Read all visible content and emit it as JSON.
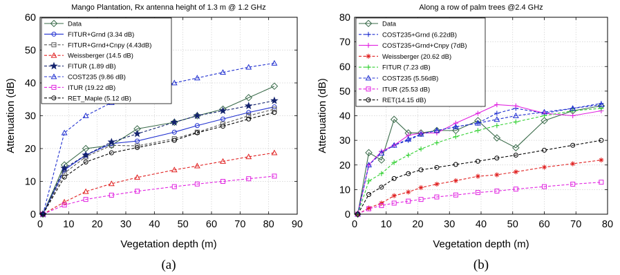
{
  "chart_data": [
    {
      "type": "line",
      "title": "Mango Plantation, Rx antenna height of 1.3 m @ 1.2 GHz",
      "xlabel": "Vegetation depth (m)",
      "ylabel": "Attenuation (dB)",
      "caption": "(a)",
      "xlim": [
        0,
        90
      ],
      "ylim": [
        0,
        60
      ],
      "xticks": [
        0,
        10,
        20,
        30,
        40,
        50,
        60,
        70,
        80,
        90
      ],
      "yticks": [
        0,
        10,
        20,
        30,
        40,
        50,
        60
      ],
      "grid": true,
      "legend_position": "top-left",
      "series": [
        {
          "name": "Data",
          "color": "#3a6b4a",
          "dash": "solid",
          "marker": "diamond",
          "x": [
            1,
            8.5,
            16,
            25,
            34,
            47,
            55,
            64,
            73,
            82
          ],
          "y": [
            0,
            15,
            20,
            21,
            26,
            28,
            30,
            32,
            35.5,
            39
          ]
        },
        {
          "name": "FITUR+Grnd (3.34 dB)",
          "color": "#1f2fd0",
          "dash": "solid",
          "marker": "circle",
          "x": [
            1,
            8.5,
            16,
            25,
            34,
            47,
            55,
            64,
            73,
            82
          ],
          "y": [
            0,
            13.5,
            18,
            21.5,
            22.3,
            25,
            27,
            29,
            31,
            32.7
          ]
        },
        {
          "name": "FITUR+Grnd+Cnpy (4.43dB)",
          "color": "#555555",
          "dash": "dashed",
          "marker": "square",
          "x": [
            1,
            8.5,
            16,
            25,
            34,
            47,
            55,
            64,
            73,
            82
          ],
          "y": [
            0,
            12.5,
            17.5,
            21,
            20.8,
            23,
            25,
            27.5,
            30,
            32
          ]
        },
        {
          "name": "Weissberger (14.5 dB)",
          "color": "#e02020",
          "dash": "dashed",
          "marker": "triangle",
          "x": [
            1,
            8.5,
            16,
            25,
            34,
            47,
            55,
            64,
            73,
            82
          ],
          "y": [
            0,
            3.7,
            6.9,
            9.3,
            11.2,
            13.5,
            14.7,
            16.1,
            17.5,
            18.7
          ]
        },
        {
          "name": "FITUR (1.89 dB)",
          "color": "#14236e",
          "dash": "dashed",
          "marker": "star",
          "x": [
            1,
            8.5,
            16,
            25,
            34,
            47,
            55,
            64,
            73,
            82
          ],
          "y": [
            0,
            14,
            18,
            22,
            24.5,
            28,
            30,
            31.5,
            33,
            34.6
          ]
        },
        {
          "name": "COST235 (9.86 dB)",
          "color": "#1f2fd0",
          "dash": "dashed",
          "marker": "triangle",
          "x": [
            1,
            8.5,
            16,
            25,
            34,
            47,
            55,
            64,
            73,
            82
          ],
          "y": [
            0,
            24.8,
            30,
            34,
            37,
            40,
            41.5,
            43.2,
            44.8,
            46
          ]
        },
        {
          "name": "ITUR (19.22 dB)",
          "color": "#e020e0",
          "dash": "dashed",
          "marker": "square",
          "x": [
            1,
            8.5,
            16,
            25,
            34,
            47,
            55,
            64,
            73,
            82
          ],
          "y": [
            0,
            2.8,
            4.5,
            5.8,
            7,
            8.4,
            9.2,
            10,
            10.8,
            11.6
          ]
        },
        {
          "name": "RET_Maple (5.12 dB)",
          "color": "#000000",
          "dash": "dashed",
          "marker": "circle",
          "x": [
            1,
            8.5,
            16,
            25,
            34,
            47,
            55,
            64,
            73,
            82
          ],
          "y": [
            0,
            11.3,
            15.9,
            18.7,
            20.3,
            22.5,
            24.8,
            26.8,
            29,
            31
          ]
        }
      ]
    },
    {
      "type": "line",
      "title": "Along a row of palm trees @2.4 GHz",
      "xlabel": "Vegetation depth (m)",
      "ylabel": "Attenuation (dB)",
      "caption": "(b)",
      "xlim": [
        0,
        80
      ],
      "ylim": [
        0,
        80
      ],
      "xticks": [
        0,
        10,
        20,
        30,
        40,
        50,
        60,
        70,
        80
      ],
      "yticks": [
        0,
        10,
        20,
        30,
        40,
        50,
        60,
        70,
        80
      ],
      "grid": true,
      "legend_position": "top-left",
      "series": [
        {
          "name": "Data",
          "color": "#3a6b4a",
          "dash": "solid",
          "marker": "diamond",
          "x": [
            1,
            4.5,
            8.5,
            12.5,
            17,
            21,
            26,
            32,
            39,
            45,
            51,
            60,
            69,
            78
          ],
          "y": [
            0,
            25,
            22,
            38.5,
            33,
            33,
            34,
            34,
            38,
            31,
            27,
            38,
            42,
            44
          ]
        },
        {
          "name": "COST235+Grnd (6.22dB)",
          "color": "#1f2fd0",
          "dash": "dashed",
          "marker": "plus",
          "x": [
            1,
            4.5,
            8.5,
            12.5,
            17,
            21,
            26,
            32,
            39,
            45,
            51,
            60,
            69,
            78
          ],
          "y": [
            0,
            20,
            25.5,
            28,
            30,
            32.5,
            34,
            35.5,
            37,
            41,
            43,
            41,
            43,
            45
          ]
        },
        {
          "name": "COST235+Grnd+Cnpy (7dB)",
          "color": "#e020e0",
          "dash": "solid",
          "marker": "plus",
          "x": [
            1,
            4.5,
            8.5,
            12.5,
            17,
            21,
            26,
            32,
            39,
            45,
            51,
            60,
            69,
            78
          ],
          "y": [
            0,
            20,
            25.5,
            28,
            32,
            33,
            33,
            37,
            41,
            44.5,
            44,
            41,
            40,
            42
          ]
        },
        {
          "name": "Weissberger (20.62 dB)",
          "color": "#e02020",
          "dash": "dashed",
          "marker": "asterisk",
          "x": [
            1,
            4.5,
            8.5,
            12.5,
            17,
            21,
            26,
            32,
            39,
            45,
            51,
            60,
            69,
            78
          ],
          "y": [
            0,
            2.5,
            4.5,
            7.5,
            9,
            10.8,
            12.2,
            13.6,
            15.4,
            16,
            17.2,
            19.1,
            20.5,
            22
          ]
        },
        {
          "name": "FITUR (7.23 dB)",
          "color": "#30d030",
          "dash": "dashed",
          "marker": "plus",
          "x": [
            1,
            4.5,
            8.5,
            12.5,
            17,
            21,
            26,
            32,
            39,
            45,
            51,
            60,
            69,
            78
          ],
          "y": [
            0,
            13.5,
            16.5,
            21,
            24,
            26.5,
            29,
            31.5,
            34,
            36,
            37.5,
            40,
            42,
            43
          ]
        },
        {
          "name": "COST235 (5.56dB)",
          "color": "#1f2fd0",
          "dash": "dashed",
          "marker": "triangle",
          "x": [
            1,
            4.5,
            8.5,
            12.5,
            17,
            21,
            26,
            32,
            39,
            45,
            51,
            60,
            69,
            78
          ],
          "y": [
            0,
            20,
            24.8,
            28,
            30.5,
            32.5,
            34,
            35.5,
            37,
            38.5,
            40,
            41.5,
            43,
            44.5
          ]
        },
        {
          "name": "ITUR (25.53 dB)",
          "color": "#e020e0",
          "dash": "dashed",
          "marker": "square",
          "x": [
            1,
            4.5,
            8.5,
            12.5,
            17,
            21,
            26,
            32,
            39,
            45,
            51,
            60,
            69,
            78
          ],
          "y": [
            0,
            2.2,
            3.5,
            4.5,
            5.3,
            6,
            7,
            7.8,
            8.8,
            9.4,
            10.2,
            11.2,
            12.2,
            13
          ]
        },
        {
          "name": "RET(14.15 dB)",
          "color": "#000000",
          "dash": "dashed",
          "marker": "circle",
          "x": [
            1,
            4.5,
            8.5,
            12.5,
            17,
            21,
            26,
            32,
            39,
            45,
            51,
            60,
            69,
            78
          ],
          "y": [
            0,
            8,
            11,
            14.5,
            16.5,
            18,
            19,
            20.2,
            21.5,
            22.8,
            24,
            26,
            28,
            30
          ]
        }
      ]
    }
  ]
}
